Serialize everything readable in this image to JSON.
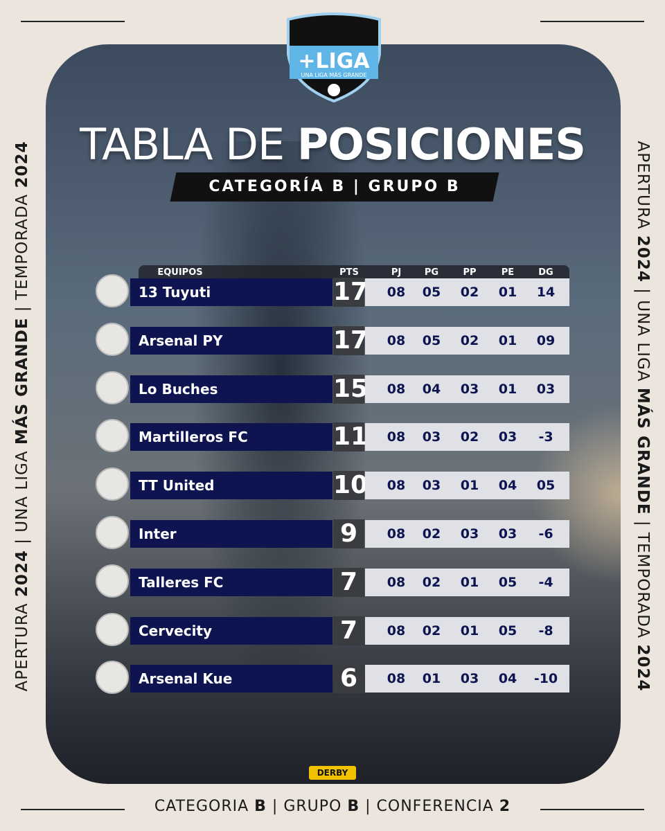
{
  "logo": {
    "name": "+LIGA",
    "tagline": "UNA LIGA MÁS GRANDE"
  },
  "title": [
    {
      "text": "TABLA DE ",
      "bold": false
    },
    {
      "text": "POSICIONES",
      "bold": true
    }
  ],
  "subtitle": "CATEGORÍA B | GRUPO B",
  "side_text": [
    {
      "text": "APERTURA ",
      "bold": false
    },
    {
      "text": "2024",
      "bold": true
    },
    {
      "text": " | UNA LIGA ",
      "bold": false
    },
    {
      "text": "MÁS GRANDE",
      "bold": true
    },
    {
      "text": " | TEMPORADA ",
      "bold": false
    },
    {
      "text": "2024",
      "bold": true
    }
  ],
  "table": {
    "columns": [
      "EQUIPOS",
      "PTS",
      "PJ",
      "PG",
      "PP",
      "PE",
      "DG"
    ],
    "rows": [
      [
        "13 Tuyuti",
        "17",
        "08",
        "05",
        "02",
        "01",
        "14"
      ],
      [
        "Arsenal PY",
        "17",
        "08",
        "05",
        "02",
        "01",
        "09"
      ],
      [
        "Lo Buches",
        "15",
        "08",
        "04",
        "03",
        "01",
        "03"
      ],
      [
        "Martilleros FC",
        "11",
        "08",
        "03",
        "02",
        "03",
        "-3"
      ],
      [
        "TT United",
        "10",
        "08",
        "03",
        "01",
        "04",
        "05"
      ],
      [
        "Inter",
        "9",
        "08",
        "02",
        "03",
        "03",
        "-6"
      ],
      [
        "Talleres FC",
        "7",
        "08",
        "02",
        "01",
        "05",
        "-4"
      ],
      [
        "Cervecity",
        "7",
        "08",
        "02",
        "01",
        "05",
        "-8"
      ],
      [
        "Arsenal Kue",
        "6",
        "08",
        "01",
        "03",
        "04",
        "-10"
      ]
    ]
  },
  "sponsor": "DERBY",
  "footer": [
    {
      "text": "CATEGORIA ",
      "bold": false
    },
    {
      "text": "B",
      "bold": true
    },
    {
      "text": " | GRUPO ",
      "bold": false
    },
    {
      "text": "B",
      "bold": true
    },
    {
      "text": " | CONFERENCIA ",
      "bold": false
    },
    {
      "text": "2",
      "bold": true
    }
  ]
}
